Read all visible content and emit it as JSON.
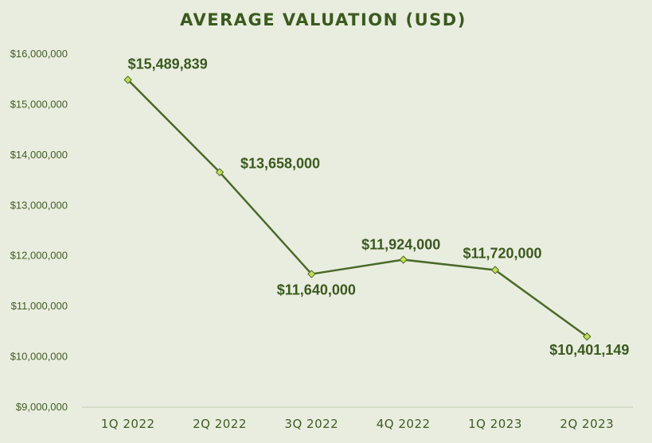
{
  "chart_data": {
    "type": "line",
    "title": "AVERAGE VALUATION (USD)",
    "categories": [
      "1Q 2022",
      "2Q 2022",
      "3Q 2022",
      "4Q 2022",
      "1Q 2023",
      "2Q 2023"
    ],
    "values": [
      15489839,
      13658000,
      11640000,
      11924000,
      11720000,
      10401149
    ],
    "data_labels": [
      "$15,489,839",
      "$13,658,000",
      "$11,640,000",
      "$11,924,000",
      "$11,720,000",
      "$10,401,149"
    ],
    "ylim": [
      9000000,
      16000000
    ],
    "yticks": [
      9000000,
      10000000,
      11000000,
      12000000,
      13000000,
      14000000,
      15000000,
      16000000
    ],
    "ytick_labels": [
      "$9,000,000",
      "$10,000,000",
      "$11,000,000",
      "$12,000,000",
      "$13,000,000",
      "$14,000,000",
      "$15,000,000",
      "$16,000,000"
    ],
    "grid": false,
    "legend": "none",
    "colors": {
      "line": "#4a6a28",
      "marker": "#c4dd54",
      "text": "#3a5a1e",
      "background": "#e9eddf"
    }
  }
}
